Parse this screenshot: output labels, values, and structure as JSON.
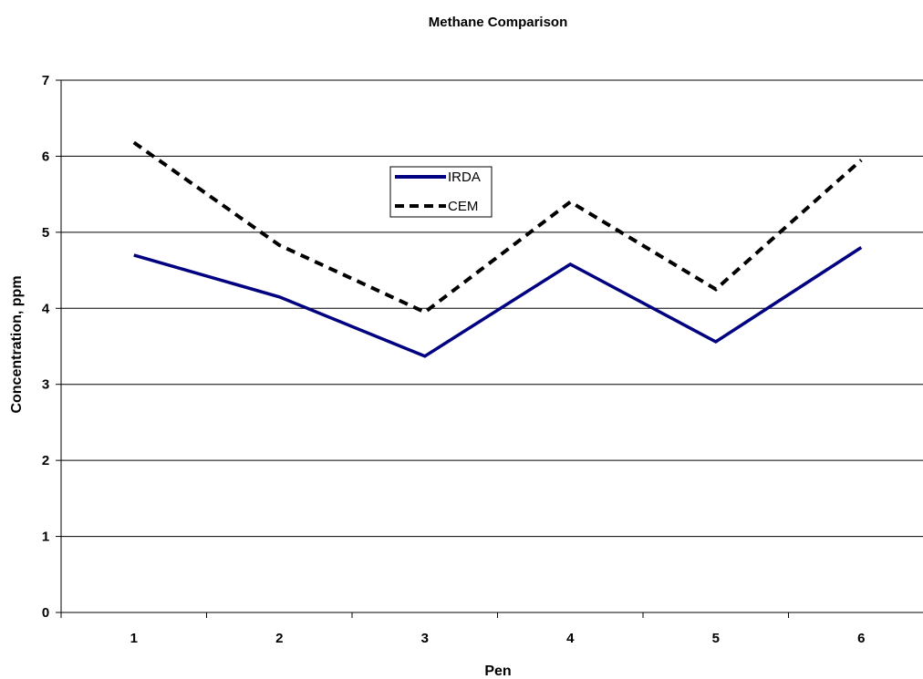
{
  "chart_data": {
    "type": "line",
    "title": "Methane Comparison",
    "xlabel": "Pen",
    "ylabel": "Concentration, ppm",
    "categories": [
      "1",
      "2",
      "3",
      "4",
      "5",
      "6"
    ],
    "ylim": [
      0,
      7
    ],
    "yticks": [
      "0",
      "1",
      "2",
      "3",
      "4",
      "5",
      "6",
      "7"
    ],
    "grid": true,
    "legend": "upper-center",
    "series": [
      {
        "name": "IRDA",
        "values": [
          4.7,
          4.15,
          3.37,
          4.58,
          3.56,
          4.8
        ],
        "color": "#000080",
        "style": "solid"
      },
      {
        "name": "CEM",
        "values": [
          6.18,
          4.83,
          3.95,
          5.4,
          4.25,
          5.95
        ],
        "color": "#000000",
        "style": "dashed"
      }
    ]
  }
}
